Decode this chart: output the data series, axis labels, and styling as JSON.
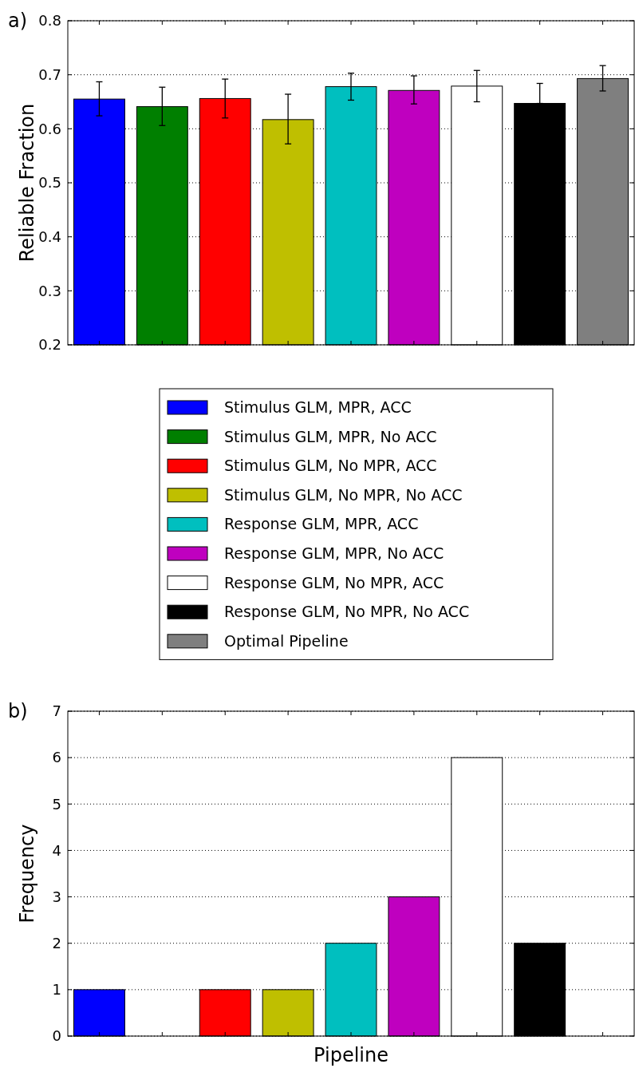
{
  "chart_data": [
    {
      "type": "bar",
      "title": "a)",
      "ylabel": "Reliable Fraction",
      "categories": [
        null,
        null,
        null,
        null,
        null,
        null,
        null,
        null,
        null
      ],
      "ylim": [
        0.2,
        0.8
      ],
      "yticks": [
        0.2,
        0.3,
        0.4,
        0.5,
        0.6,
        0.7,
        0.8
      ],
      "grid": "y",
      "legend": "bottom",
      "series": [
        {
          "name": "Stimulus GLM, MPR, ACC",
          "color": "#0000ff",
          "values": [
            0.655,
            null,
            null,
            null,
            null,
            null,
            null,
            null,
            null
          ],
          "errors": [
            [
              0.624,
              0.687
            ],
            null,
            null,
            null,
            null,
            null,
            null,
            null,
            null
          ]
        },
        {
          "name": "Stimulus GLM, MPR, No ACC",
          "color": "#007f00",
          "values": [
            null,
            0.641,
            null,
            null,
            null,
            null,
            null,
            null,
            null
          ],
          "errors": [
            null,
            [
              0.606,
              0.677
            ],
            null,
            null,
            null,
            null,
            null,
            null,
            null
          ]
        },
        {
          "name": "Stimulus GLM, No MPR, ACC",
          "color": "#ff0000",
          "values": [
            null,
            null,
            0.656,
            null,
            null,
            null,
            null,
            null,
            null
          ],
          "errors": [
            null,
            null,
            [
              0.62,
              0.692
            ],
            null,
            null,
            null,
            null,
            null,
            null
          ]
        },
        {
          "name": "Stimulus GLM, No MPR, No ACC",
          "color": "#bfbf00",
          "values": [
            null,
            null,
            null,
            0.617,
            null,
            null,
            null,
            null,
            null
          ],
          "errors": [
            null,
            null,
            null,
            [
              0.572,
              0.664
            ],
            null,
            null,
            null,
            null,
            null
          ]
        },
        {
          "name": "Response GLM, MPR, ACC",
          "color": "#00bfbf",
          "values": [
            null,
            null,
            null,
            null,
            0.678,
            null,
            null,
            null,
            null
          ],
          "errors": [
            null,
            null,
            null,
            null,
            [
              0.653,
              0.703
            ],
            null,
            null,
            null,
            null
          ]
        },
        {
          "name": "Response GLM, MPR, No ACC",
          "color": "#bf00bf",
          "values": [
            null,
            null,
            null,
            null,
            null,
            0.671,
            null,
            null,
            null
          ],
          "errors": [
            null,
            null,
            null,
            null,
            null,
            [
              0.646,
              0.698
            ],
            null,
            null,
            null
          ]
        },
        {
          "name": "Response GLM, No MPR, ACC",
          "color": "#ffffff",
          "values": [
            null,
            null,
            null,
            null,
            null,
            null,
            0.679,
            null,
            null
          ],
          "errors": [
            null,
            null,
            null,
            null,
            null,
            null,
            [
              0.65,
              0.708
            ],
            null,
            null
          ]
        },
        {
          "name": "Response GLM, No MPR, No ACC",
          "color": "#000000",
          "values": [
            null,
            null,
            null,
            null,
            null,
            null,
            null,
            0.647,
            null
          ],
          "errors": [
            null,
            null,
            null,
            null,
            null,
            null,
            null,
            [
              0.647,
              0.684
            ],
            null
          ]
        },
        {
          "name": "Optimal Pipeline",
          "color": "#7f7f7f",
          "values": [
            null,
            null,
            null,
            null,
            null,
            null,
            null,
            null,
            0.693
          ],
          "errors": [
            null,
            null,
            null,
            null,
            null,
            null,
            null,
            null,
            [
              0.67,
              0.717
            ]
          ]
        }
      ]
    },
    {
      "type": "bar",
      "title": "b)",
      "xlabel": "Pipeline",
      "ylabel": "Frequency",
      "categories": [
        null,
        null,
        null,
        null,
        null,
        null,
        null,
        null,
        null
      ],
      "ylim": [
        0,
        7
      ],
      "yticks": [
        0,
        1,
        2,
        3,
        4,
        5,
        6,
        7
      ],
      "grid": "y",
      "values": [
        1,
        0,
        1,
        1,
        2,
        3,
        6,
        2,
        0
      ],
      "colors": [
        "#0000ff",
        "#007f00",
        "#ff0000",
        "#bfbf00",
        "#00bfbf",
        "#bf00bf",
        "#ffffff",
        "#000000",
        "#7f7f7f"
      ]
    }
  ]
}
